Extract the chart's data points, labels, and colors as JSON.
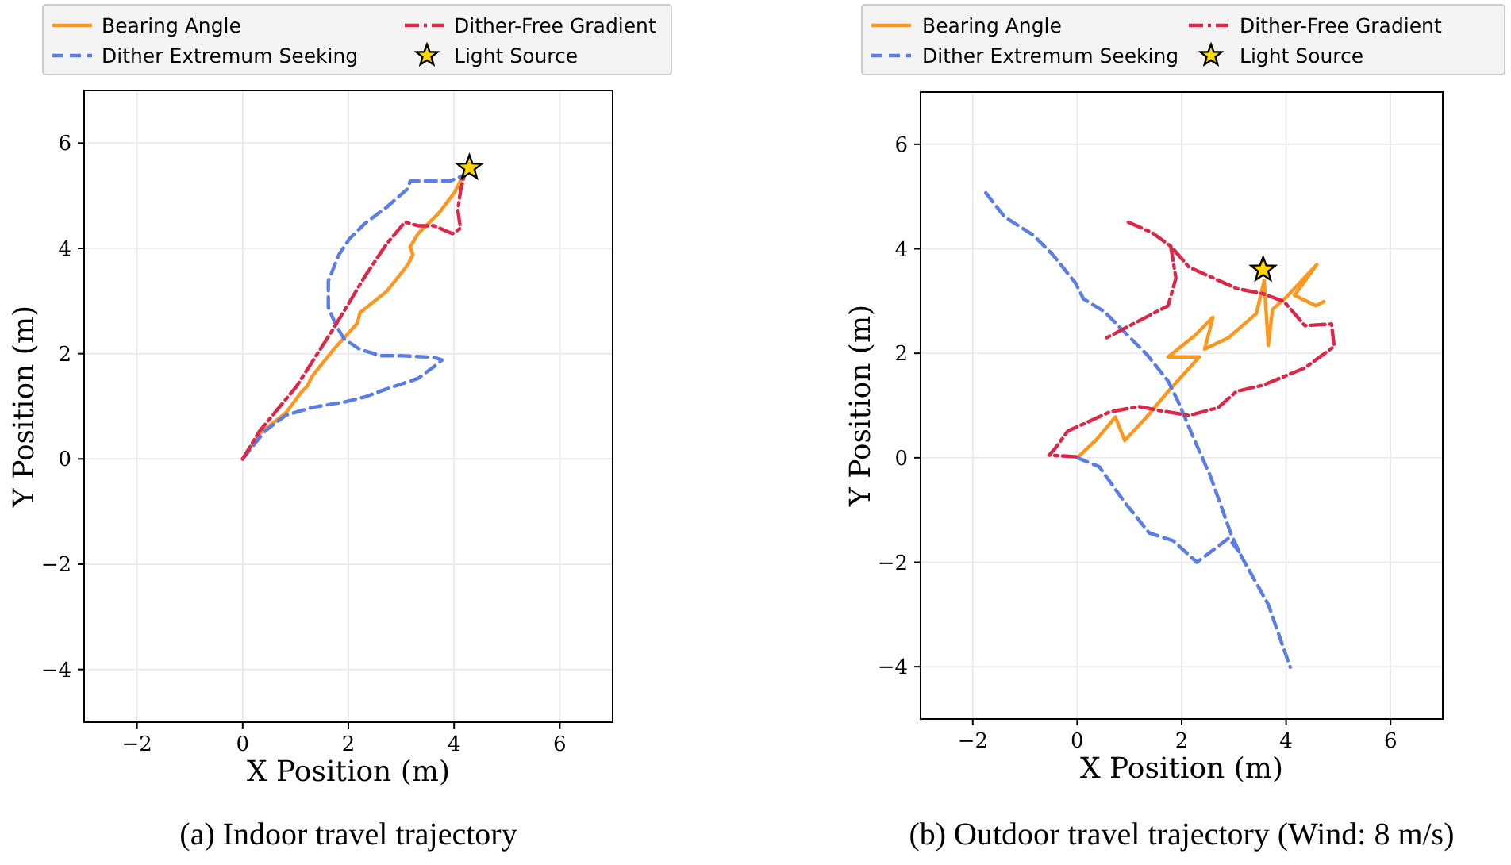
{
  "chart_data": [
    {
      "type": "line",
      "title": "(a) Indoor travel trajectory",
      "xlabel": "X Position (m)",
      "ylabel": "Y Position (m)",
      "xlim": [
        -3,
        7
      ],
      "ylim": [
        -5,
        7
      ],
      "xticks": [
        -2,
        0,
        2,
        4,
        6
      ],
      "yticks": [
        -4,
        -2,
        0,
        2,
        4,
        6
      ],
      "grid": true,
      "legend": "top",
      "series": [
        {
          "name": "Bearing Angle",
          "color": "#ff961e",
          "line_style": "solid",
          "x": [
            0,
            0.32,
            0.82,
            1.12,
            1.22,
            1.32,
            1.72,
            2.17,
            2.22,
            2.72,
            3.12,
            3.22,
            3.17,
            3.32,
            3.72,
            4.02,
            4.17,
            4.29
          ],
          "values": [
            0,
            0.48,
            0.88,
            1.28,
            1.38,
            1.58,
            2.08,
            2.58,
            2.78,
            3.18,
            3.68,
            3.88,
            4.03,
            4.28,
            4.68,
            5.08,
            5.38,
            5.53
          ]
        },
        {
          "name": "Dither Extremum Seeking",
          "color": "#5a7de6",
          "line_style": "dashed",
          "x": [
            0,
            0.42,
            0.82,
            1.32,
            1.92,
            2.32,
            2.72,
            3.32,
            3.72,
            3.77,
            3.62,
            3.02,
            2.62,
            2.22,
            1.92,
            1.77,
            1.62,
            1.62,
            1.82,
            2.02,
            2.32,
            2.72,
            3.12,
            3.17,
            3.52,
            3.92,
            4.17,
            4.29
          ],
          "values": [
            0,
            0.53,
            0.83,
            0.98,
            1.08,
            1.18,
            1.33,
            1.53,
            1.83,
            1.88,
            1.93,
            1.96,
            1.96,
            2.08,
            2.28,
            2.53,
            2.88,
            3.38,
            3.88,
            4.18,
            4.48,
            4.78,
            5.13,
            5.28,
            5.28,
            5.28,
            5.38,
            5.53
          ]
        },
        {
          "name": "Dither-Free Gradient",
          "color": "#dc2848",
          "line_style": "dashdot",
          "x": [
            0,
            0.32,
            1.02,
            1.72,
            2.32,
            2.72,
            3.07,
            3.32,
            3.62,
            3.97,
            4.12,
            4.07,
            4.12,
            4.19,
            4.29
          ],
          "values": [
            0,
            0.53,
            1.38,
            2.48,
            3.48,
            4.08,
            4.5,
            4.43,
            4.43,
            4.28,
            4.38,
            4.73,
            5.08,
            5.38,
            5.53
          ]
        },
        {
          "name": "Light Source",
          "type": "scatter",
          "marker": "star",
          "color": "#ffd700",
          "x": [
            4.29
          ],
          "values": [
            5.53
          ]
        }
      ]
    },
    {
      "type": "line",
      "title": "(b) Outdoor travel trajectory (Wind: 8 m/s)",
      "xlabel": "X Position (m)",
      "ylabel": "Y Position (m)",
      "xlim": [
        -3,
        7
      ],
      "ylim": [
        -5,
        7
      ],
      "xticks": [
        -2,
        0,
        2,
        4,
        6
      ],
      "yticks": [
        -4,
        -2,
        0,
        2,
        4,
        6
      ],
      "grid": true,
      "legend": "top",
      "series": [
        {
          "name": "Bearing Angle",
          "color": "#ff961e",
          "line_style": "solid",
          "x": [
            0,
            0.37,
            0.73,
            0.91,
            1.33,
            1.74,
            2.34,
            1.74,
            2.24,
            2.6,
            2.44,
            2.9,
            3.43,
            3.58,
            3.66,
            3.74,
            4.0,
            4.59,
            4.16,
            4.57,
            4.72
          ],
          "values": [
            0,
            0.35,
            0.78,
            0.33,
            0.78,
            1.27,
            1.93,
            1.93,
            2.33,
            2.69,
            2.08,
            2.3,
            2.76,
            3.39,
            2.15,
            2.84,
            3.07,
            3.7,
            3.11,
            2.91,
            2.99
          ]
        },
        {
          "name": "Dither Extremum Seeking",
          "color": "#5a7de6",
          "line_style": "dashed",
          "x": [
            -1.75,
            -1.39,
            -0.84,
            -0.48,
            -0.03,
            0.12,
            0.53,
            0.83,
            1.33,
            1.74,
            1.94,
            2.24,
            2.55,
            2.95,
            3.15,
            3.66,
            4.08,
            null,
            0,
            0.42,
            0.93,
            1.38,
            1.84,
            2.29,
            2.9,
            3.1
          ],
          "values": [
            5.07,
            4.61,
            4.26,
            3.9,
            3.34,
            3.04,
            2.79,
            2.48,
            1.98,
            1.47,
            1.06,
            0.35,
            -0.35,
            -1.47,
            -1.9,
            -2.81,
            -4.01,
            null,
            0,
            -0.17,
            -0.88,
            -1.44,
            -1.59,
            -2,
            -1.54,
            -1.8
          ]
        },
        {
          "name": "Dither-Free Gradient",
          "color": "#dc2848",
          "line_style": "dashdot",
          "x": [
            0.98,
            1.43,
            1.79,
            2.14,
            3.05,
            3.56,
            3.96,
            4.36,
            4.87,
            4.92,
            4.36,
            3.56,
            3.05,
            2.7,
            2.14,
            1.54,
            1.18,
            0.63,
            -0.18,
            -0.43,
            -0.54,
            -0.03,
            null,
            1.79,
            1.89,
            1.74,
            0.53
          ],
          "values": [
            4.51,
            4.31,
            4.05,
            3.65,
            3.24,
            3.14,
            2.99,
            2.53,
            2.56,
            2.13,
            1.72,
            1.39,
            1.27,
            0.96,
            0.81,
            0.91,
            0.98,
            0.88,
            0.51,
            0.17,
            0.05,
            0.02,
            null,
            4.05,
            3.44,
            2.91,
            2.28
          ]
        },
        {
          "name": "Light Source",
          "type": "scatter",
          "marker": "star",
          "color": "#ffd700",
          "x": [
            3.56
          ],
          "values": [
            3.6
          ]
        }
      ]
    }
  ]
}
